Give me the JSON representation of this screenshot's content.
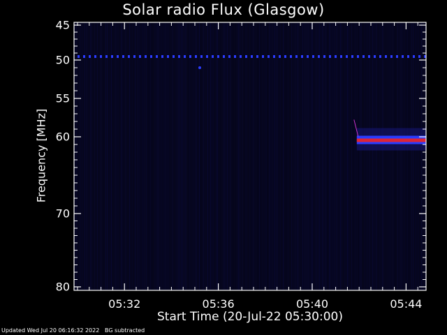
{
  "chart_data": {
    "type": "heatmap",
    "title": "Solar radio Flux (Glasgow)",
    "xlabel": "Start Time (20-Jul-22 05:30:00)",
    "ylabel": "Frequency [MHz]",
    "y_reverse": true,
    "x_ticks": [
      "05:32",
      "05:36",
      "05:40",
      "05:44"
    ],
    "x_tick_minutes": [
      2,
      6,
      10,
      14
    ],
    "x_range_minutes": [
      0,
      15
    ],
    "y_ticks": [
      45,
      50,
      55,
      60,
      70,
      80
    ],
    "ylim": [
      45,
      80
    ],
    "features": [
      {
        "name": "interference line",
        "frequency_mhz": 49.5,
        "start_minute": 0,
        "end_minute": 15
      },
      {
        "name": "narrowband emission",
        "frequency_mhz": 60.5,
        "start_minute": 11.9,
        "end_minute": 15,
        "peak_color": "red"
      }
    ],
    "colors": {
      "background": "#000000",
      "weak": "#1a1a8c",
      "medium": "#2b3cff",
      "strong": "#ff2010"
    }
  },
  "footer": {
    "updated": "Updated Wed Jul 20 06:16:32 2022",
    "note": "BG subtracted"
  }
}
